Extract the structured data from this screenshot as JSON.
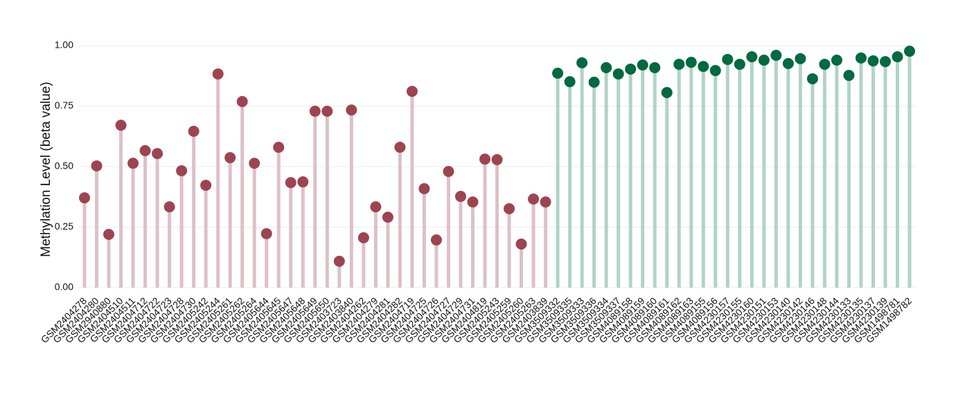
{
  "chart_data": {
    "type": "lollipop",
    "y_label": "Methylation Level (beta value)",
    "categories": [
      "GSM2404278",
      "GSM2404280",
      "GSM2940880",
      "GSM2404510",
      "GSM2404511",
      "GSM2404712",
      "GSM2404722",
      "GSM2404723",
      "GSM2404728",
      "GSM2404730",
      "GSM2405242",
      "GSM2405244",
      "GSM2405261",
      "GSM2405262",
      "GSM2405264",
      "GSM2405644",
      "GSM2405645",
      "GSM2405647",
      "GSM2405648",
      "GSM2405649",
      "GSM2405650",
      "GSM2403723",
      "GSM2403840",
      "GSM2404262",
      "GSM2404279",
      "GSM2404281",
      "GSM2404282",
      "GSM2404719",
      "GSM2404725",
      "GSM2404726",
      "GSM2404727",
      "GSM2404729",
      "GSM2404731",
      "GSM2404819",
      "GSM2405243",
      "GSM2405259",
      "GSM2405260",
      "GSM2405263",
      "GSM2403839",
      "GSM3509332",
      "GSM3509335",
      "GSM3509333",
      "GSM3509336",
      "GSM3509334",
      "GSM3509337",
      "GSM4089158",
      "GSM4089159",
      "GSM4089160",
      "GSM4089161",
      "GSM4089162",
      "GSM4089163",
      "GSM4089155",
      "GSM4089156",
      "GSM4230157",
      "GSM4230155",
      "GSM4230160",
      "GSM4230151",
      "GSM4230153",
      "GSM4230140",
      "GSM4230142",
      "GSM4230146",
      "GSM4230148",
      "GSM4230144",
      "GSM4230133",
      "GSM4230135",
      "GSM4230137",
      "GSM4230139",
      "GSM1498781",
      "GSM1498782"
    ],
    "series": [
      {
        "color": "#9e4450",
        "stem_color": "#dcc1c6",
        "values": [
          0.371,
          0.503,
          0.22,
          0.671,
          0.514,
          0.566,
          0.554,
          0.334,
          0.483,
          0.646,
          0.423,
          0.883,
          0.537,
          0.769,
          0.514,
          0.223,
          0.58,
          0.434,
          0.437,
          0.729,
          0.729,
          0.109,
          0.734,
          0.206,
          0.334,
          0.291,
          0.58,
          0.811,
          0.409,
          0.197,
          0.48,
          0.377,
          0.354,
          0.531,
          0.529,
          0.326,
          0.18,
          0.366,
          0.354,
          null,
          null,
          null,
          null,
          null,
          null,
          null,
          null,
          null,
          null,
          null,
          null,
          null,
          null,
          null,
          null,
          null,
          null,
          null,
          null,
          null,
          null,
          null,
          null,
          null,
          null,
          null,
          null,
          null,
          null
        ]
      },
      {
        "color": "#006a40",
        "stem_color": "#b1d3c7",
        "values": [
          null,
          null,
          null,
          null,
          null,
          null,
          null,
          null,
          null,
          null,
          null,
          null,
          null,
          null,
          null,
          null,
          null,
          null,
          null,
          null,
          null,
          null,
          null,
          null,
          null,
          null,
          null,
          null,
          null,
          null,
          null,
          null,
          null,
          null,
          null,
          null,
          null,
          null,
          null,
          0.886,
          0.851,
          0.929,
          0.849,
          0.909,
          0.883,
          0.903,
          0.92,
          0.909,
          0.806,
          0.923,
          0.931,
          0.914,
          0.897,
          0.943,
          0.923,
          0.954,
          0.94,
          0.96,
          0.926,
          0.946,
          0.863,
          0.923,
          0.94,
          0.877,
          0.949,
          0.937,
          0.934,
          0.954,
          0.977
        ]
      }
    ],
    "ylim": [
      0,
      1
    ],
    "yticks": [
      {
        "value": 0,
        "label": "0.00"
      },
      {
        "value": 0.25,
        "label": "0.25"
      },
      {
        "value": 0.5,
        "label": "0.50"
      },
      {
        "value": 0.75,
        "label": "0.75"
      },
      {
        "value": 1,
        "label": "1.00"
      }
    ],
    "grid": true
  }
}
